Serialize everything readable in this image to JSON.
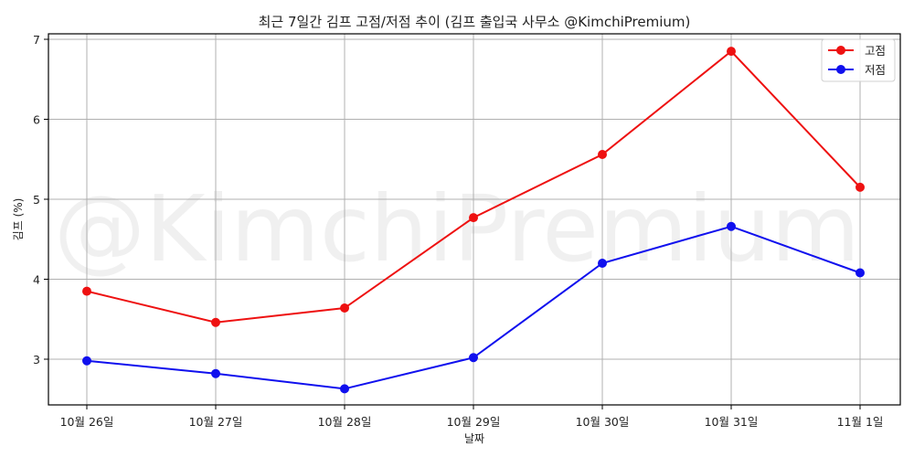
{
  "chart_data": {
    "type": "line",
    "title": "최근 7일간 김프 고점/저점 추이 (김프 출입국 사무소 @KimchiPremium)",
    "xlabel": "날짜",
    "ylabel": "김프 (%)",
    "categories": [
      "10월 26일",
      "10월 27일",
      "10월 28일",
      "10월 29일",
      "10월 30일",
      "10월 31일",
      "11월 1일"
    ],
    "series": [
      {
        "name": "고점",
        "color": "#ee1111",
        "marker": "circle",
        "values": [
          3.85,
          3.46,
          3.64,
          4.77,
          5.56,
          6.85,
          5.15
        ]
      },
      {
        "name": "저점",
        "color": "#1010ee",
        "marker": "circle",
        "values": [
          2.98,
          2.82,
          2.63,
          3.02,
          4.2,
          4.66,
          4.08
        ]
      }
    ],
    "yticks": [
      3,
      4,
      5,
      6,
      7
    ],
    "ylim": [
      2.43,
      7.07
    ],
    "grid": true,
    "legend_position": "upper right",
    "watermark": "@KimchiPremium"
  }
}
